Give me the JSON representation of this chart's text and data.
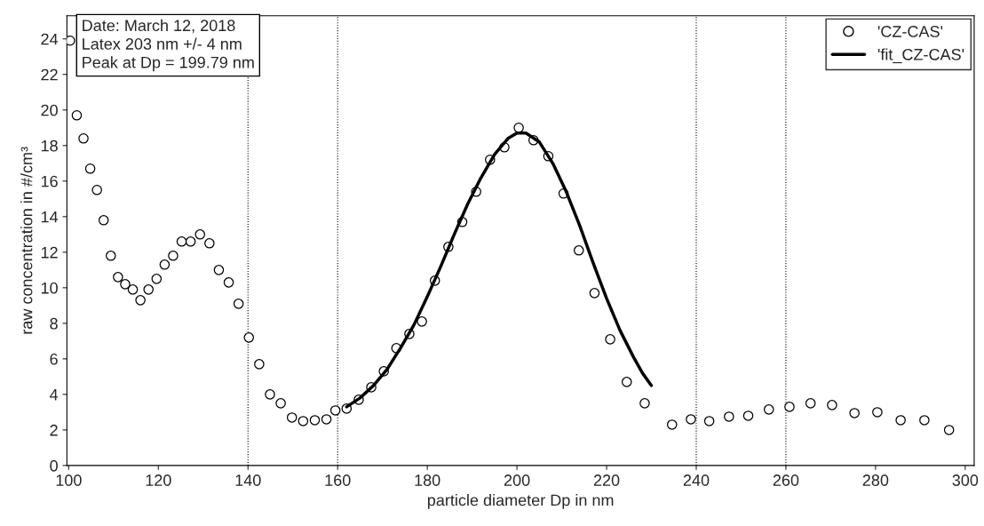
{
  "chart_data": {
    "type": "scatter",
    "xlabel": "particle diameter Dp in nm",
    "ylabel": "raw concentration in #/cm³",
    "annotations": [
      "Date: March 12, 2018\nLatex 203 nm +/- 4 nm\nPeak at Dp = 199.79 nm"
    ],
    "xlim": [
      99.6,
      302
    ],
    "xticks": [
      100,
      120,
      140,
      160,
      180,
      200,
      220,
      240,
      260,
      280,
      300
    ],
    "ylim": [
      0,
      25.3
    ],
    "yticks": [
      0,
      2,
      4,
      6,
      8,
      10,
      12,
      14,
      16,
      18,
      20,
      22,
      24
    ],
    "legend": "top right",
    "ref_lines": [
      {
        "axis": "x",
        "value": 140,
        "line_style": "dotted",
        "color": "#000000"
      },
      {
        "axis": "x",
        "value": 160,
        "line_style": "dotted",
        "color": "#000000"
      },
      {
        "axis": "x",
        "value": 240,
        "line_style": "dotted",
        "color": "#000000"
      },
      {
        "axis": "x",
        "value": 260,
        "line_style": "dotted",
        "color": "#000000"
      }
    ],
    "series": [
      {
        "name": "'CZ-CAS'",
        "marker": "circle",
        "color": "#000000",
        "x": [
          100.3,
          101.8,
          103.3,
          104.8,
          106.3,
          107.8,
          109.4,
          111,
          112.6,
          114.3,
          116,
          117.8,
          119.6,
          121.4,
          123.3,
          125.2,
          127.2,
          129.3,
          131.4,
          133.5,
          135.7,
          137.9,
          140.2,
          142.5,
          144.9,
          147.3,
          149.8,
          152.3,
          154.9,
          157.5,
          159.5,
          162,
          164.7,
          167.5,
          170.3,
          173.1,
          176,
          178.8,
          181.7,
          184.7,
          187.8,
          190.9,
          194,
          197.2,
          200.4,
          203.7,
          207,
          210.4,
          213.8,
          217.3,
          220.8,
          224.5,
          228.5,
          234.6,
          238.8,
          242.9,
          247.3,
          251.6,
          256.2,
          260.8,
          265.5,
          270.3,
          275.3,
          280.4,
          285.6,
          290.9,
          296.4
        ],
        "values": [
          23.9,
          19.7,
          18.4,
          16.7,
          15.5,
          13.8,
          11.8,
          10.6,
          10.2,
          9.9,
          9.3,
          9.9,
          10.5,
          11.3,
          11.8,
          12.6,
          12.6,
          13.0,
          12.5,
          11.0,
          10.3,
          9.1,
          7.2,
          5.7,
          4.0,
          3.5,
          2.7,
          2.5,
          2.55,
          2.6,
          3.1,
          3.2,
          3.7,
          4.4,
          5.3,
          6.6,
          7.4,
          8.1,
          10.4,
          12.3,
          13.7,
          15.4,
          17.2,
          17.9,
          19.0,
          18.3,
          17.4,
          15.3,
          12.1,
          9.7,
          7.1,
          4.7,
          3.5,
          2.3,
          2.6,
          2.5,
          2.75,
          2.8,
          3.15,
          3.3,
          3.5,
          3.4,
          2.95,
          3.0,
          2.55,
          2.55,
          2.0
        ]
      },
      {
        "name": "'fit_CZ-CAS'",
        "type": "line",
        "marker": "none",
        "line_style": "solid",
        "color": "#000000",
        "x": [
          162,
          165,
          168,
          171,
          174,
          177,
          180,
          183,
          186,
          189,
          192,
          195,
          198,
          200,
          202,
          205,
          208,
          211,
          214,
          217,
          220,
          223,
          226,
          228,
          230
        ],
        "values": [
          3.3,
          3.8,
          4.5,
          5.4,
          6.6,
          7.9,
          9.5,
          11.2,
          13.0,
          14.7,
          16.2,
          17.5,
          18.4,
          18.7,
          18.7,
          18.2,
          17.0,
          15.4,
          13.5,
          11.4,
          9.4,
          7.6,
          6.1,
          5.2,
          4.5
        ]
      }
    ]
  }
}
